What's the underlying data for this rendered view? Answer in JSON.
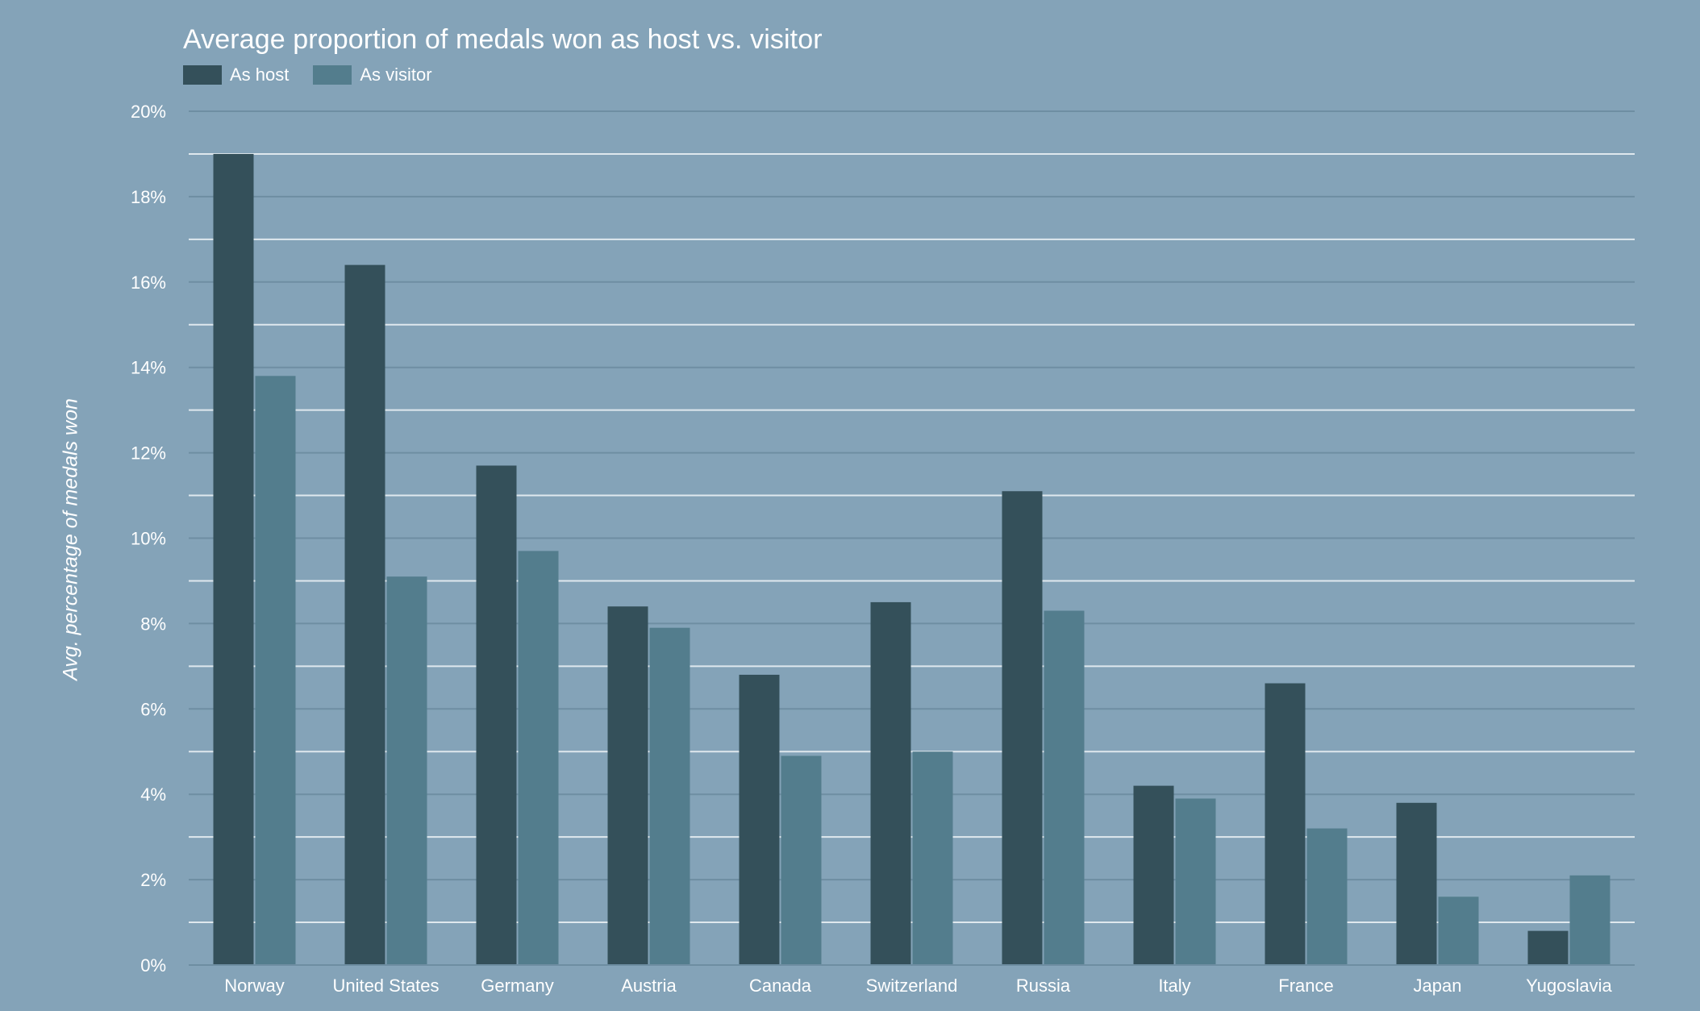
{
  "chart_data": {
    "type": "bar",
    "title": "Average proportion of medals won as host vs. visitor",
    "xlabel": "",
    "ylabel": "Avg. percentage of medals won",
    "ylim": [
      0,
      20
    ],
    "yticks": [
      0,
      2,
      4,
      6,
      8,
      10,
      12,
      14,
      16,
      18,
      20
    ],
    "ytick_labels": [
      "0%",
      "2%",
      "4%",
      "6%",
      "8%",
      "10%",
      "12%",
      "14%",
      "16%",
      "18%",
      "20%"
    ],
    "grid": true,
    "legend_position": "top-left",
    "categories": [
      "Norway",
      "United States",
      "Germany",
      "Austria",
      "Canada",
      "Switzerland",
      "Russia",
      "Italy",
      "France",
      "Japan",
      "Yugoslavia"
    ],
    "series": [
      {
        "name": "As host",
        "color": "#34505a",
        "values": [
          19.0,
          16.4,
          11.7,
          8.4,
          6.8,
          8.5,
          11.1,
          4.2,
          6.6,
          3.8,
          0.8
        ]
      },
      {
        "name": "As visitor",
        "color": "#537d8d",
        "values": [
          13.8,
          9.1,
          9.7,
          7.9,
          4.9,
          5.0,
          8.3,
          3.9,
          3.2,
          1.6,
          2.1
        ]
      }
    ]
  }
}
